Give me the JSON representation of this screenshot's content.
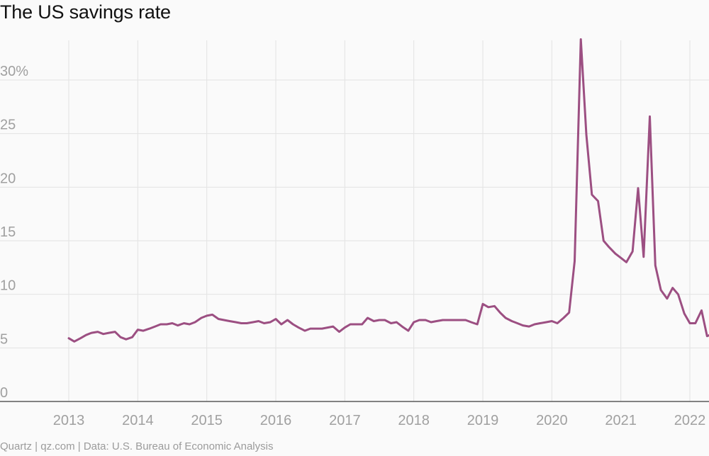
{
  "title": "The US savings rate",
  "footer": "Quartz | qz.com | Data: U.S. Bureau of Economic Analysis",
  "colors": {
    "line": "#9c4f82",
    "grid": "#e3e3e3",
    "axis": "#5a5a5a",
    "tick_text": "#a0a0a0"
  },
  "chart_data": {
    "type": "line",
    "title": "The US savings rate",
    "xlabel": "",
    "ylabel": "",
    "ylim": [
      0,
      34
    ],
    "xlim": [
      2012.0,
      2022.3
    ],
    "y_ticks": [
      {
        "value": 0,
        "label": "0"
      },
      {
        "value": 5,
        "label": "5"
      },
      {
        "value": 10,
        "label": "10"
      },
      {
        "value": 15,
        "label": "15"
      },
      {
        "value": 20,
        "label": "20"
      },
      {
        "value": 25,
        "label": "25"
      },
      {
        "value": 30,
        "label": "30%"
      }
    ],
    "x_ticks": [
      {
        "value": 2013,
        "label": "2013"
      },
      {
        "value": 2014,
        "label": "2014"
      },
      {
        "value": 2015,
        "label": "2015"
      },
      {
        "value": 2016,
        "label": "2016"
      },
      {
        "value": 2017,
        "label": "2017"
      },
      {
        "value": 2018,
        "label": "2018"
      },
      {
        "value": 2019,
        "label": "2019"
      },
      {
        "value": 2020,
        "label": "2020"
      },
      {
        "value": 2021,
        "label": "2021"
      },
      {
        "value": 2022,
        "label": "2022"
      }
    ],
    "grid": true,
    "series": [
      {
        "points": [
          [
            2013.0,
            5.9
          ],
          [
            2013.08,
            5.6
          ],
          [
            2013.17,
            5.9
          ],
          [
            2013.25,
            6.2
          ],
          [
            2013.33,
            6.4
          ],
          [
            2013.42,
            6.5
          ],
          [
            2013.5,
            6.3
          ],
          [
            2013.58,
            6.4
          ],
          [
            2013.67,
            6.5
          ],
          [
            2013.75,
            6.0
          ],
          [
            2013.83,
            5.8
          ],
          [
            2013.92,
            6.0
          ],
          [
            2014.0,
            6.7
          ],
          [
            2014.08,
            6.6
          ],
          [
            2014.17,
            6.8
          ],
          [
            2014.25,
            7.0
          ],
          [
            2014.33,
            7.2
          ],
          [
            2014.42,
            7.2
          ],
          [
            2014.5,
            7.3
          ],
          [
            2014.58,
            7.1
          ],
          [
            2014.67,
            7.3
          ],
          [
            2014.75,
            7.2
          ],
          [
            2014.83,
            7.4
          ],
          [
            2014.92,
            7.8
          ],
          [
            2015.0,
            8.0
          ],
          [
            2015.08,
            8.1
          ],
          [
            2015.17,
            7.7
          ],
          [
            2015.25,
            7.6
          ],
          [
            2015.33,
            7.5
          ],
          [
            2015.42,
            7.4
          ],
          [
            2015.5,
            7.3
          ],
          [
            2015.58,
            7.3
          ],
          [
            2015.67,
            7.4
          ],
          [
            2015.75,
            7.5
          ],
          [
            2015.83,
            7.3
          ],
          [
            2015.92,
            7.4
          ],
          [
            2016.0,
            7.7
          ],
          [
            2016.08,
            7.2
          ],
          [
            2016.17,
            7.6
          ],
          [
            2016.25,
            7.2
          ],
          [
            2016.33,
            6.9
          ],
          [
            2016.42,
            6.6
          ],
          [
            2016.5,
            6.8
          ],
          [
            2016.58,
            6.8
          ],
          [
            2016.67,
            6.8
          ],
          [
            2016.75,
            6.9
          ],
          [
            2016.83,
            7.0
          ],
          [
            2016.92,
            6.5
          ],
          [
            2017.0,
            6.9
          ],
          [
            2017.08,
            7.2
          ],
          [
            2017.17,
            7.2
          ],
          [
            2017.25,
            7.2
          ],
          [
            2017.33,
            7.8
          ],
          [
            2017.42,
            7.5
          ],
          [
            2017.5,
            7.6
          ],
          [
            2017.58,
            7.6
          ],
          [
            2017.67,
            7.3
          ],
          [
            2017.75,
            7.4
          ],
          [
            2017.83,
            7.0
          ],
          [
            2017.92,
            6.6
          ],
          [
            2018.0,
            7.4
          ],
          [
            2018.08,
            7.6
          ],
          [
            2018.17,
            7.6
          ],
          [
            2018.25,
            7.4
          ],
          [
            2018.33,
            7.5
          ],
          [
            2018.42,
            7.6
          ],
          [
            2018.5,
            7.6
          ],
          [
            2018.58,
            7.6
          ],
          [
            2018.67,
            7.6
          ],
          [
            2018.75,
            7.6
          ],
          [
            2018.83,
            7.4
          ],
          [
            2018.92,
            7.2
          ],
          [
            2019.0,
            9.1
          ],
          [
            2019.08,
            8.8
          ],
          [
            2019.17,
            8.9
          ],
          [
            2019.25,
            8.3
          ],
          [
            2019.33,
            7.8
          ],
          [
            2019.42,
            7.5
          ],
          [
            2019.5,
            7.3
          ],
          [
            2019.58,
            7.1
          ],
          [
            2019.67,
            7.0
          ],
          [
            2019.75,
            7.2
          ],
          [
            2019.83,
            7.3
          ],
          [
            2019.92,
            7.4
          ],
          [
            2020.0,
            7.5
          ],
          [
            2020.08,
            7.3
          ],
          [
            2020.17,
            7.8
          ],
          [
            2020.25,
            8.3
          ],
          [
            2020.33,
            13.1
          ],
          [
            2020.42,
            33.8
          ],
          [
            2020.5,
            24.9
          ],
          [
            2020.58,
            19.3
          ],
          [
            2020.67,
            18.7
          ],
          [
            2020.75,
            15.0
          ],
          [
            2020.83,
            14.4
          ],
          [
            2020.92,
            13.8
          ],
          [
            2021.0,
            13.4
          ],
          [
            2021.08,
            13.0
          ],
          [
            2021.17,
            14.0
          ],
          [
            2021.25,
            19.9
          ],
          [
            2021.33,
            13.5
          ],
          [
            2021.42,
            26.6
          ],
          [
            2021.5,
            12.7
          ],
          [
            2021.58,
            10.4
          ],
          [
            2021.67,
            9.6
          ],
          [
            2021.75,
            10.6
          ],
          [
            2021.83,
            10.0
          ],
          [
            2021.92,
            8.2
          ],
          [
            2022.0,
            7.3
          ],
          [
            2022.08,
            7.3
          ],
          [
            2022.17,
            8.5
          ],
          [
            2022.25,
            6.1
          ],
          [
            2022.33,
            6.3
          ]
        ]
      }
    ]
  }
}
